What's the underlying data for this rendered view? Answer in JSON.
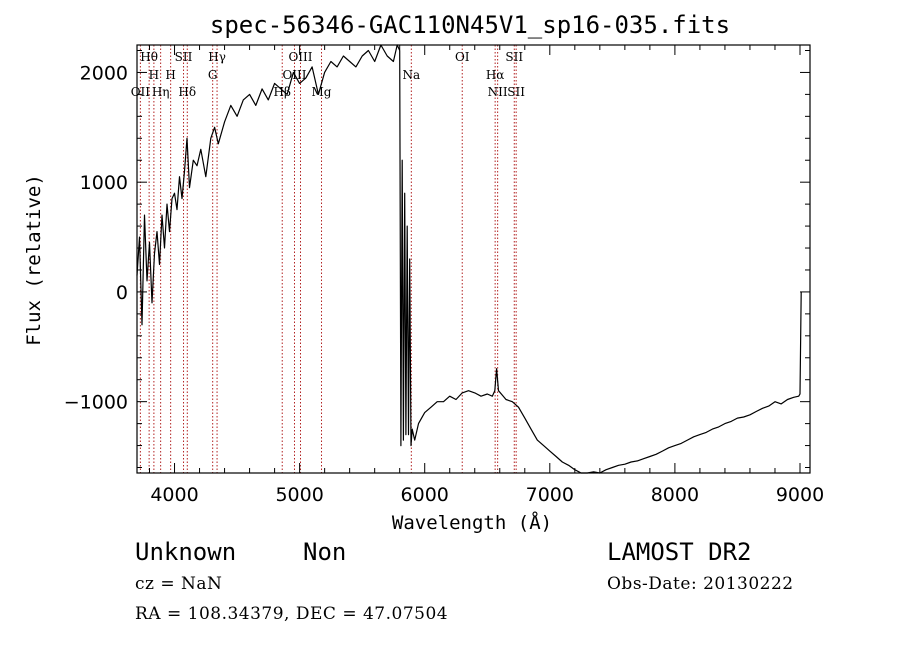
{
  "chart_data": {
    "type": "line",
    "title": "spec-56346-GAC110N45V1_sp16-035.fits",
    "xlabel": "Wavelength (Å)",
    "ylabel": "Flux (relative)",
    "xlim": [
      3700,
      9080
    ],
    "ylim": [
      -1650,
      2250
    ],
    "x_ticks": [
      4000,
      5000,
      6000,
      7000,
      8000,
      9000
    ],
    "y_ticks": [
      -1000,
      0,
      1000,
      2000
    ],
    "x_tick_labels": [
      "4000",
      "5000",
      "6000",
      "7000",
      "8000",
      "9000"
    ],
    "y_tick_labels": [
      "−1000",
      "0",
      "1000",
      "2000"
    ],
    "grid": false,
    "legend": "none",
    "line_color": "#000000",
    "marker_color": "#b22222",
    "series": [
      {
        "x": [
          3700,
          3720,
          3740,
          3760,
          3780,
          3800,
          3820,
          3840,
          3860,
          3880,
          3900,
          3920,
          3940,
          3960,
          3980,
          4000,
          4020,
          4040,
          4060,
          4080,
          4100,
          4120,
          4150,
          4180,
          4210,
          4250,
          4290,
          4320,
          4350,
          4400,
          4450,
          4500,
          4550,
          4600,
          4650,
          4700,
          4750,
          4800,
          4850,
          4900,
          4950,
          5000,
          5050,
          5100,
          5150,
          5200,
          5250,
          5300,
          5350,
          5400,
          5450,
          5500,
          5550,
          5600,
          5650,
          5700,
          5750,
          5780,
          5800,
          5810,
          5820,
          5830,
          5840,
          5850,
          5860,
          5870,
          5880,
          5890,
          5900,
          5920,
          5950,
          6000,
          6050,
          6100,
          6150,
          6200,
          6250,
          6300,
          6350,
          6400,
          6450,
          6500,
          6540,
          6560,
          6575,
          6590,
          6620,
          6650,
          6700,
          6750,
          6800,
          6850,
          6900,
          6950,
          7000,
          7050,
          7100,
          7150,
          7200,
          7250,
          7300,
          7350,
          7400,
          7450,
          7500,
          7550,
          7600,
          7650,
          7700,
          7750,
          7800,
          7850,
          7900,
          7950,
          8000,
          8050,
          8100,
          8150,
          8200,
          8250,
          8300,
          8350,
          8400,
          8450,
          8500,
          8550,
          8600,
          8650,
          8700,
          8750,
          8800,
          8850,
          8900,
          8950,
          8990,
          9000,
          9010
        ],
        "y": [
          150,
          500,
          -300,
          700,
          100,
          450,
          -100,
          350,
          550,
          250,
          700,
          400,
          800,
          550,
          850,
          900,
          750,
          1050,
          850,
          1100,
          1400,
          950,
          1200,
          1150,
          1300,
          1050,
          1400,
          1500,
          1350,
          1550,
          1700,
          1600,
          1750,
          1800,
          1700,
          1850,
          1750,
          1900,
          1850,
          1800,
          2000,
          1900,
          1950,
          2050,
          1800,
          2000,
          2100,
          2050,
          2150,
          2100,
          2050,
          2150,
          2200,
          2100,
          2250,
          2150,
          2100,
          2250,
          2200,
          -1400,
          1200,
          -1350,
          900,
          -1300,
          600,
          -1300,
          300,
          -1400,
          -1250,
          -1350,
          -1200,
          -1100,
          -1050,
          -1000,
          -1000,
          -950,
          -980,
          -920,
          -900,
          -920,
          -950,
          -930,
          -950,
          -900,
          -700,
          -900,
          -940,
          -980,
          -1000,
          -1050,
          -1150,
          -1250,
          -1350,
          -1400,
          -1450,
          -1500,
          -1550,
          -1580,
          -1620,
          -1650,
          -1660,
          -1640,
          -1650,
          -1620,
          -1600,
          -1580,
          -1570,
          -1550,
          -1540,
          -1520,
          -1500,
          -1480,
          -1450,
          -1420,
          -1400,
          -1380,
          -1350,
          -1320,
          -1300,
          -1280,
          -1250,
          -1230,
          -1200,
          -1180,
          -1150,
          -1140,
          -1120,
          -1090,
          -1060,
          -1040,
          -1000,
          -1020,
          -980,
          -960,
          -950,
          -930,
          0
        ]
      }
    ],
    "lines": [
      {
        "name": "Hθ",
        "x": 3797,
        "row": 0
      },
      {
        "name": "H",
        "x": 3835,
        "row": 1
      },
      {
        "name": "OII",
        "x": 3727,
        "row": 2
      },
      {
        "name": "Hη",
        "x": 3889,
        "row": 2
      },
      {
        "name": "SII",
        "x": 4072,
        "row": 0
      },
      {
        "name": "H",
        "x": 3969,
        "row": 1
      },
      {
        "name": "Hδ",
        "x": 4102,
        "row": 2
      },
      {
        "name": "Hγ",
        "x": 4340,
        "row": 0
      },
      {
        "name": "G",
        "x": 4305,
        "row": 1
      },
      {
        "name": "OIII",
        "x": 5007,
        "row": 0
      },
      {
        "name": "OIII",
        "x": 4959,
        "row": 1
      },
      {
        "name": "Hβ",
        "x": 4861,
        "row": 2
      },
      {
        "name": "Mg",
        "x": 5175,
        "row": 2
      },
      {
        "name": "Na",
        "x": 5893,
        "row": 1
      },
      {
        "name": "OI",
        "x": 6300,
        "row": 0
      },
      {
        "name": "Hα",
        "x": 6563,
        "row": 1
      },
      {
        "name": "NII",
        "x": 6583,
        "row": 2
      },
      {
        "name": "SII",
        "x": 6716,
        "row": 0
      },
      {
        "name": "SII",
        "x": 6731,
        "row": 2
      }
    ]
  },
  "info": {
    "class_label": "Unknown",
    "subclass_label": "Non",
    "survey": "LAMOST DR2",
    "cz": "cz = NaN",
    "obs_date": "Obs-Date: 20130222",
    "coords": "RA = 108.34379, DEC =  47.07504"
  }
}
